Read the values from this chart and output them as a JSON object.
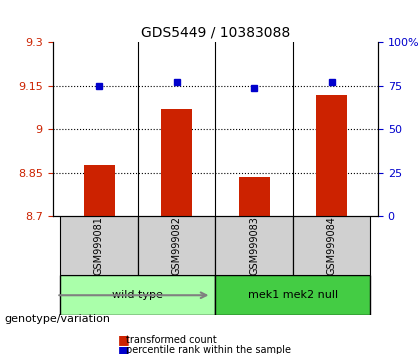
{
  "title": "GDS5449 / 10383088",
  "samples": [
    "GSM999081",
    "GSM999082",
    "GSM999083",
    "GSM999084"
  ],
  "bar_values": [
    8.875,
    9.07,
    8.835,
    9.12
  ],
  "dot_values": [
    75,
    77,
    74,
    77
  ],
  "ylim_left": [
    8.7,
    9.3
  ],
  "ylim_right": [
    0,
    100
  ],
  "yticks_left": [
    8.7,
    8.85,
    9.0,
    9.15,
    9.3
  ],
  "yticks_right": [
    0,
    25,
    50,
    75,
    100
  ],
  "ytick_labels_left": [
    "8.7",
    "8.85",
    "9",
    "9.15",
    "9.3"
  ],
  "ytick_labels_right": [
    "0",
    "25",
    "50",
    "75",
    "100%"
  ],
  "hlines": [
    8.85,
    9.0,
    9.15
  ],
  "bar_color": "#cc2200",
  "dot_color": "#0000cc",
  "bar_width": 0.4,
  "groups": [
    {
      "label": "wild type",
      "samples": [
        0,
        1
      ],
      "color": "#aaffaa"
    },
    {
      "label": "mek1 mek2 null",
      "samples": [
        2,
        3
      ],
      "color": "#44cc44"
    }
  ],
  "genotype_label": "genotype/variation",
  "legend_bar_label": "transformed count",
  "legend_dot_label": "percentile rank within the sample",
  "left_color": "#cc2200",
  "right_color": "#0000cc"
}
